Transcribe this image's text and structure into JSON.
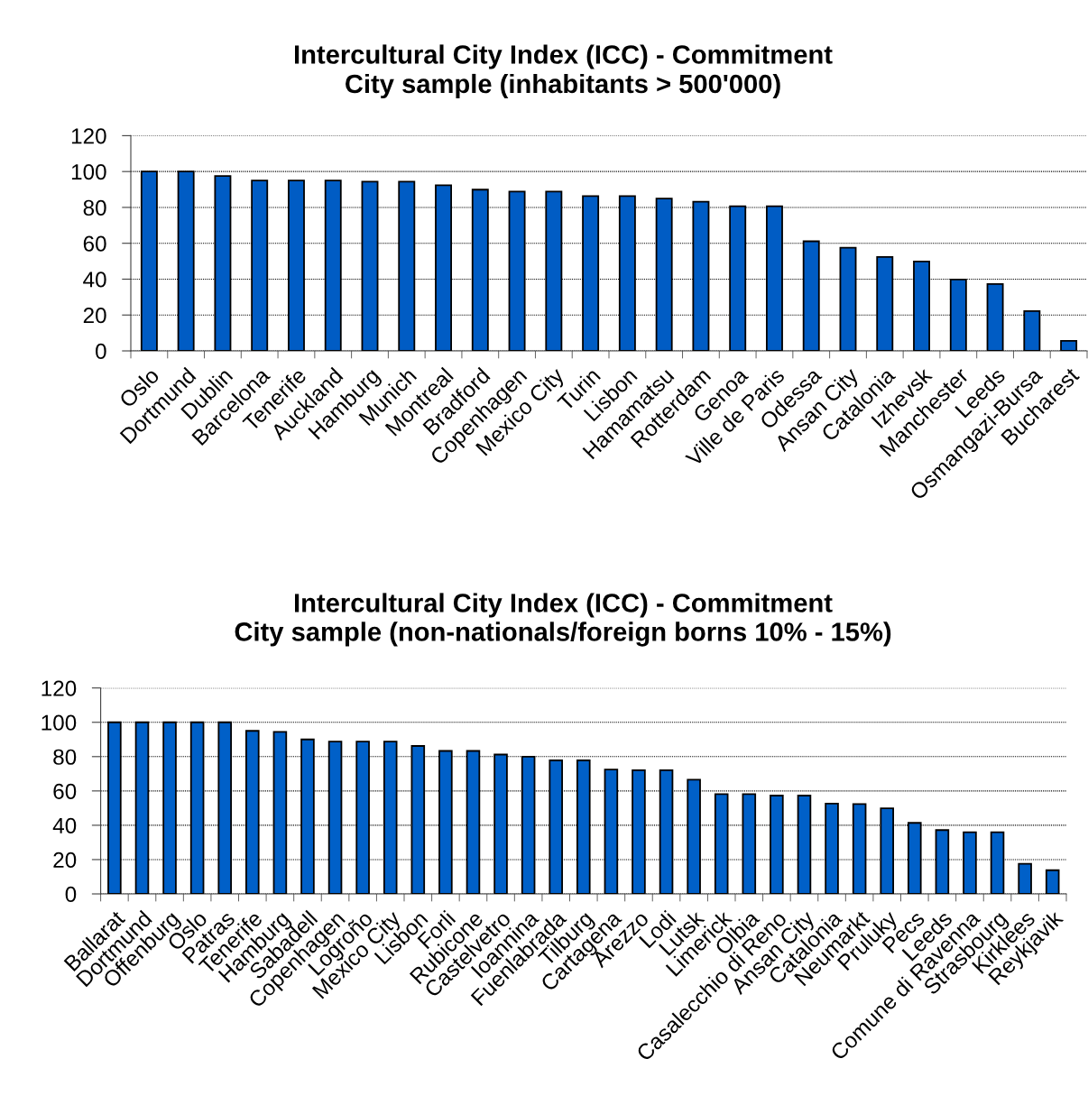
{
  "chart_data": [
    {
      "type": "bar",
      "title": "Intercultural City Index (ICC) - Commitment",
      "subtitle": "City sample (inhabitants > 500'000)",
      "categories": [
        "Oslo",
        "Dortmund",
        "Dublin",
        "Barcelona",
        "Tenerife",
        "Auckland",
        "Hamburg",
        "Munich",
        "Montreal",
        "Bradford",
        "Copenhagen",
        "Mexico City",
        "Turin",
        "Lisbon",
        "Hamamatsu",
        "Rotterdam",
        "Genoa",
        "Ville de Paris",
        "Odessa",
        "Ansan City",
        "Catalonia",
        "Izhevsk",
        "Manchester",
        "Leeds",
        "Osmangazi-Bursa",
        "Bucharest"
      ],
      "values": [
        100,
        100,
        97.5,
        95,
        95,
        95,
        94.4,
        94.4,
        92.4,
        89.9,
        88.8,
        88.8,
        86.3,
        86.3,
        84.9,
        83.2,
        80.7,
        80.7,
        61.1,
        57.5,
        52.4,
        49.9,
        39.8,
        37.3,
        22.2,
        5.6
      ],
      "color": "#005cc4",
      "ylim": [
        0,
        120
      ],
      "yticks": [
        0,
        20,
        40,
        60,
        80,
        100,
        120
      ],
      "grid": "y"
    },
    {
      "type": "bar",
      "title": "Intercultural City Index (ICC) - Commitment",
      "subtitle": "City sample (non-nationals/foreign borns 10% - 15%)",
      "categories": [
        "Ballarat",
        "Dortmund",
        "Offenburg",
        "Oslo",
        "Patras",
        "Tenerife",
        "Hamburg",
        "Sabadell",
        "Copenhagen",
        "Logroño",
        "Mexico City",
        "Lisbon",
        "Forli",
        "Rubicone",
        "Castelvetro",
        "Ioannina",
        "Fuenlabrada",
        "Tilburg",
        "Cartagena",
        "Arezzo",
        "Lodi",
        "Lutsk",
        "Limerick",
        "Olbia",
        "Casalecchio di Reno",
        "Ansan City",
        "Catalonia",
        "Neumarkt",
        "Pruluky",
        "Pecs",
        "Leeds",
        "Comune di Ravenna",
        "Strasbourg",
        "Kirklees",
        "Reykjavik"
      ],
      "values": [
        100,
        100,
        100,
        100,
        100,
        95,
        94.4,
        90,
        88.8,
        88.8,
        88.8,
        86.2,
        83.3,
        83.3,
        81.2,
        80,
        77.8,
        77.8,
        72.5,
        72.1,
        72.1,
        66.6,
        58.1,
        58.1,
        57.3,
        57.3,
        52.6,
        52.4,
        49.9,
        41.4,
        37.2,
        35.9,
        35.9,
        17.5,
        13.8
      ],
      "color": "#0060c8",
      "ylim": [
        0,
        120
      ],
      "yticks": [
        0,
        20,
        40,
        60,
        80,
        100,
        120
      ],
      "grid": "y"
    }
  ]
}
